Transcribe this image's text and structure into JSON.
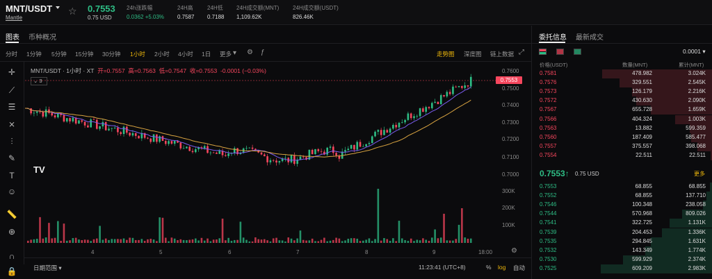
{
  "header": {
    "pair": "MNT/USDT",
    "pair_sub": "Mantle",
    "last_price": "0.7553",
    "last_price_usd": "0.75 USD",
    "stats": [
      {
        "label": "24h涨跌幅",
        "value": "0.0362 +5.03%",
        "tone": "green"
      },
      {
        "label": "24H高",
        "value": "0.7587",
        "tone": ""
      },
      {
        "label": "24H低",
        "value": "0.7188",
        "tone": ""
      },
      {
        "label": "24H成交额(MNT)",
        "value": "1,109.62K",
        "tone": ""
      },
      {
        "label": "24H成交额(USDT)",
        "value": "826.46K",
        "tone": ""
      }
    ]
  },
  "chart_tabs": [
    "图表",
    "币种概况"
  ],
  "intervals": [
    "分时",
    "1分钟",
    "5分钟",
    "15分钟",
    "30分钟",
    "1小时",
    "2小时",
    "4小时",
    "1日",
    "更多"
  ],
  "active_interval": "1小时",
  "chart_modes": [
    "走势图",
    "深度图",
    "链上数据"
  ],
  "active_mode": "走势图",
  "ohlc": {
    "title": "MNT/USDT · 1小时 · XT",
    "open": "开=0.7557",
    "high": "高=0.7563",
    "low": "低=0.7547",
    "close": "收=0.7553",
    "change": "-0.0001 (−0.03%)"
  },
  "indicator_count": "3",
  "current_price_tag": "0.7553",
  "price_axis": [
    "0.7600",
    "0.7500",
    "0.7400",
    "0.7300",
    "0.7200",
    "0.7100",
    "0.7000"
  ],
  "volume_axis": [
    "300K",
    "200K",
    "100K"
  ],
  "time_axis": [
    "4",
    "5",
    "6",
    "7",
    "8",
    "9",
    "18:00"
  ],
  "footer": {
    "date_range": "日期范围",
    "clock": "11:23:41 (UTC+8)",
    "pct": "%",
    "log": "log",
    "auto": "自动"
  },
  "book": {
    "tabs": [
      "委托信息",
      "最新成交"
    ],
    "step": "0.0001",
    "headers": {
      "price": "价格(USDT)",
      "qty": "数量(MNT)",
      "total": "累计(MNT)"
    },
    "asks": [
      {
        "p": "0.7581",
        "q": "478.982",
        "t": "3.024K",
        "w": 0.99
      },
      {
        "p": "0.7576",
        "q": "329.551",
        "t": "2.545K",
        "w": 0.83
      },
      {
        "p": "0.7573",
        "q": "126.179",
        "t": "2.216K",
        "w": 0.72
      },
      {
        "p": "0.7572",
        "q": "430.630",
        "t": "2.090K",
        "w": 0.68
      },
      {
        "p": "0.7567",
        "q": "655.728",
        "t": "1.659K",
        "w": 0.55
      },
      {
        "p": "0.7566",
        "q": "404.324",
        "t": "1.003K",
        "w": 0.33
      },
      {
        "p": "0.7563",
        "q": "13.882",
        "t": "599.359",
        "w": 0.2
      },
      {
        "p": "0.7560",
        "q": "187.409",
        "t": "585.477",
        "w": 0.19
      },
      {
        "p": "0.7557",
        "q": "375.557",
        "t": "398.068",
        "w": 0.13
      },
      {
        "p": "0.7554",
        "q": "22.511",
        "t": "22.511",
        "w": 0.01
      }
    ],
    "mid_price": "0.7553↑",
    "mid_usd": "0.75 USD",
    "more_label": "更多",
    "bids": [
      {
        "p": "0.7553",
        "q": "68.855",
        "t": "68.855",
        "w": 0.02
      },
      {
        "p": "0.7552",
        "q": "68.855",
        "t": "137.710",
        "w": 0.05
      },
      {
        "p": "0.7546",
        "q": "100.348",
        "t": "238.058",
        "w": 0.08
      },
      {
        "p": "0.7544",
        "q": "570.968",
        "t": "809.026",
        "w": 0.27
      },
      {
        "p": "0.7541",
        "q": "322.725",
        "t": "1.131K",
        "w": 0.38
      },
      {
        "p": "0.7539",
        "q": "204.453",
        "t": "1.336K",
        "w": 0.45
      },
      {
        "p": "0.7535",
        "q": "294.845",
        "t": "1.631K",
        "w": 0.55
      },
      {
        "p": "0.7532",
        "q": "143.349",
        "t": "1.774K",
        "w": 0.6
      },
      {
        "p": "0.7530",
        "q": "599.929",
        "t": "2.374K",
        "w": 0.8
      },
      {
        "p": "0.7525",
        "q": "609.209",
        "t": "2.983K",
        "w": 1.0
      }
    ]
  },
  "colors": {
    "up": "#2ebd85",
    "down": "#f6465d",
    "accent": "#f0b90b"
  }
}
